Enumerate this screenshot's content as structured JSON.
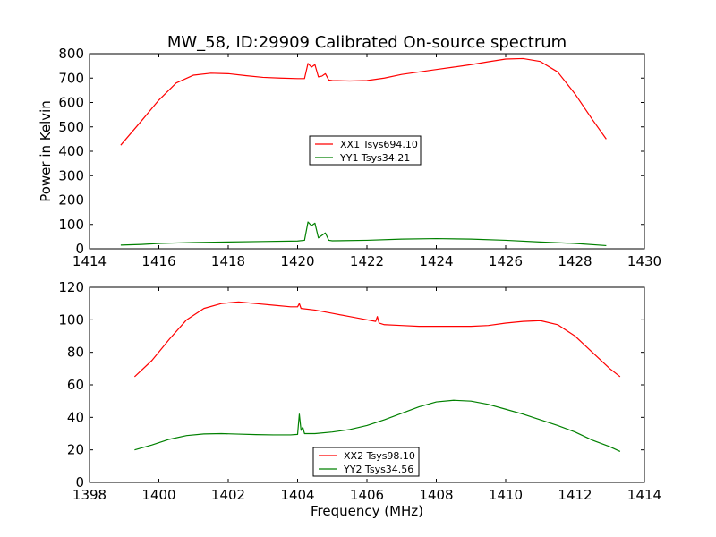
{
  "figure": {
    "title": "MW_58, ID:29909 Calibrated On-source spectrum"
  },
  "chart_data": [
    {
      "type": "line",
      "title": "MW_58, ID:29909 Calibrated On-source spectrum",
      "xlabel": "",
      "ylabel": "Power in Kelvin",
      "xlim": [
        1414,
        1430
      ],
      "ylim": [
        0,
        800
      ],
      "xticks": [
        1414,
        1416,
        1418,
        1420,
        1422,
        1424,
        1426,
        1428,
        1430
      ],
      "yticks": [
        0,
        100,
        200,
        300,
        400,
        500,
        600,
        700,
        800
      ],
      "grid": false,
      "legend_position": "center",
      "series": [
        {
          "name": "XX1 Tsys694.10",
          "color": "#ff0000",
          "x": [
            1414.9,
            1415.5,
            1416.0,
            1416.5,
            1417.0,
            1417.5,
            1418.0,
            1418.5,
            1419.0,
            1419.5,
            1420.0,
            1420.2,
            1420.3,
            1420.4,
            1420.5,
            1420.6,
            1420.7,
            1420.8,
            1420.9,
            1421.0,
            1421.5,
            1422.0,
            1422.5,
            1423.0,
            1423.5,
            1424.0,
            1424.5,
            1425.0,
            1425.5,
            1426.0,
            1426.5,
            1427.0,
            1427.5,
            1428.0,
            1428.5,
            1428.9
          ],
          "y": [
            425,
            525,
            610,
            680,
            712,
            720,
            718,
            710,
            703,
            700,
            698,
            698,
            760,
            745,
            755,
            705,
            708,
            718,
            692,
            690,
            688,
            690,
            700,
            715,
            725,
            735,
            745,
            755,
            767,
            778,
            780,
            768,
            725,
            635,
            530,
            450
          ]
        },
        {
          "name": "YY1 Tsys34.21",
          "color": "#008000",
          "x": [
            1414.9,
            1415.5,
            1416.0,
            1417.0,
            1418.0,
            1419.0,
            1420.0,
            1420.2,
            1420.3,
            1420.4,
            1420.5,
            1420.6,
            1420.7,
            1420.8,
            1420.9,
            1421.0,
            1422.0,
            1423.0,
            1424.0,
            1425.0,
            1426.0,
            1427.0,
            1428.0,
            1428.9
          ],
          "y": [
            15,
            18,
            22,
            26,
            28,
            30,
            32,
            35,
            110,
            95,
            105,
            45,
            55,
            65,
            35,
            33,
            35,
            40,
            42,
            40,
            35,
            28,
            22,
            13
          ]
        }
      ]
    },
    {
      "type": "line",
      "title": "",
      "xlabel": "Frequency (MHz)",
      "ylabel": "",
      "xlim": [
        1398,
        1414
      ],
      "ylim": [
        0,
        120
      ],
      "xticks": [
        1398,
        1400,
        1402,
        1404,
        1406,
        1408,
        1410,
        1412,
        1414
      ],
      "yticks": [
        0,
        20,
        40,
        60,
        80,
        100,
        120
      ],
      "grid": false,
      "legend_position": "bottom-center",
      "series": [
        {
          "name": "XX2 Tsys98.10",
          "color": "#ff0000",
          "x": [
            1399.3,
            1399.8,
            1400.3,
            1400.8,
            1401.3,
            1401.8,
            1402.3,
            1402.8,
            1403.3,
            1403.8,
            1404.0,
            1404.05,
            1404.1,
            1404.5,
            1405.0,
            1405.5,
            1406.0,
            1406.25,
            1406.3,
            1406.35,
            1406.5,
            1407.0,
            1407.5,
            1408.0,
            1408.5,
            1409.0,
            1409.5,
            1410.0,
            1410.5,
            1411.0,
            1411.5,
            1412.0,
            1412.5,
            1413.0,
            1413.3
          ],
          "y": [
            65,
            75,
            88,
            100,
            107,
            110,
            111,
            110,
            109,
            108,
            108,
            110,
            107,
            106,
            104,
            102,
            100,
            99,
            102,
            98,
            97,
            96.5,
            96,
            96,
            96,
            96,
            96.5,
            98,
            99,
            99.5,
            97,
            90,
            80,
            70,
            65
          ]
        },
        {
          "name": "YY2 Tsys34.56",
          "color": "#008000",
          "x": [
            1399.3,
            1399.8,
            1400.3,
            1400.8,
            1401.3,
            1401.8,
            1402.3,
            1402.8,
            1403.3,
            1403.8,
            1404.0,
            1404.05,
            1404.1,
            1404.15,
            1404.2,
            1404.5,
            1405.0,
            1405.5,
            1406.0,
            1406.5,
            1407.0,
            1407.5,
            1408.0,
            1408.5,
            1409.0,
            1409.5,
            1410.0,
            1410.5,
            1411.0,
            1411.5,
            1412.0,
            1412.5,
            1413.0,
            1413.3
          ],
          "y": [
            20,
            23,
            26.5,
            28.8,
            29.8,
            30,
            29.7,
            29.4,
            29.2,
            29.2,
            29.5,
            42,
            32,
            34,
            30,
            30,
            31,
            32.5,
            35,
            38.5,
            42.5,
            46.5,
            49.5,
            50.5,
            50,
            48,
            45,
            42,
            38.5,
            35,
            31,
            26,
            22,
            19
          ]
        }
      ]
    }
  ]
}
